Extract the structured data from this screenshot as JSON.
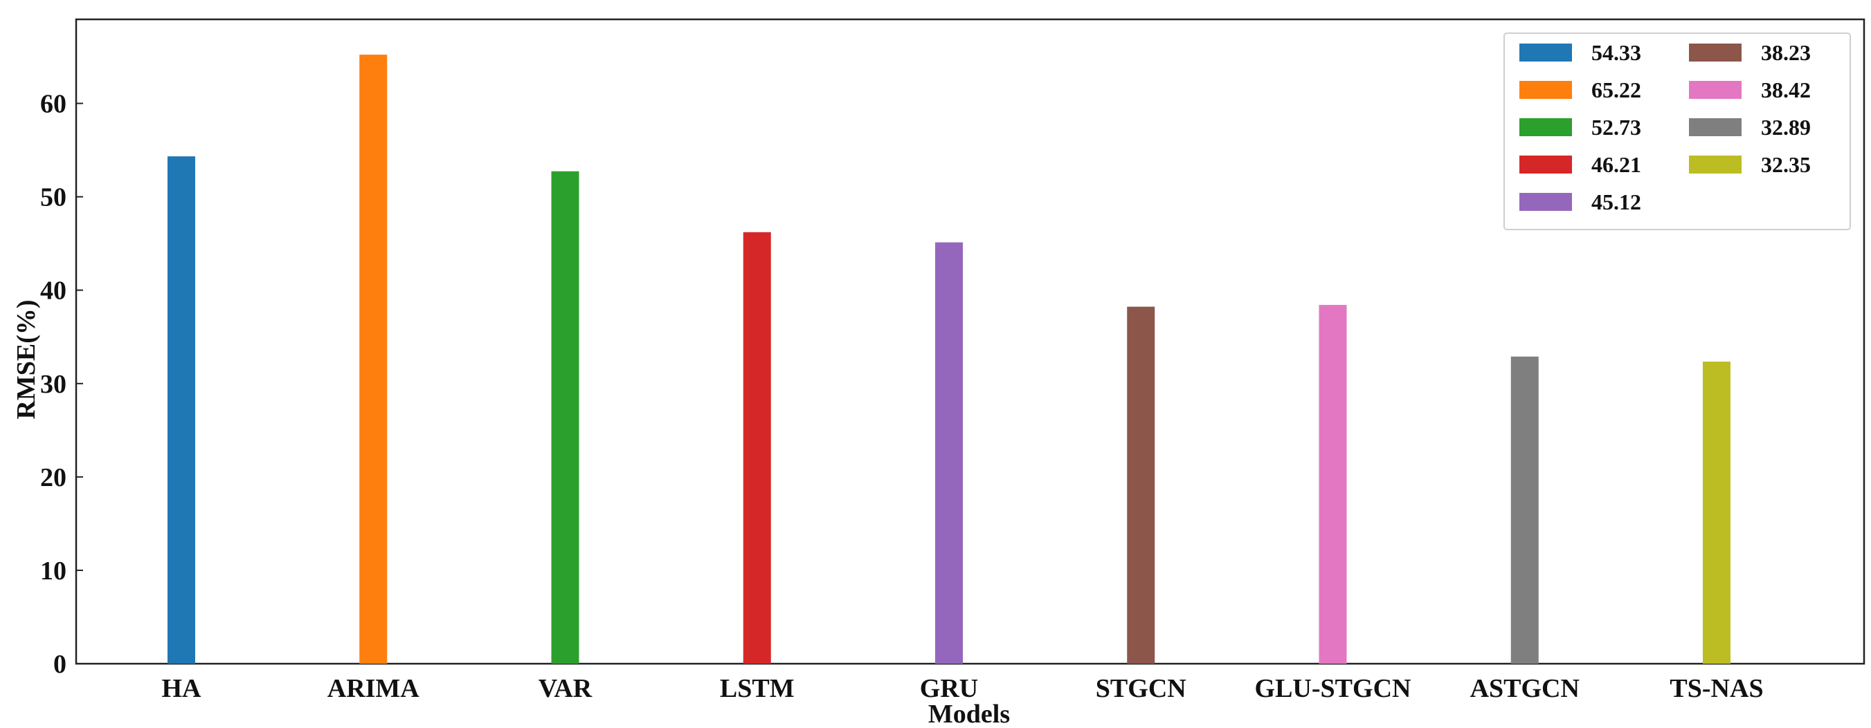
{
  "chart_data": {
    "type": "bar",
    "categories": [
      "HA",
      "ARIMA",
      "VAR",
      "LSTM",
      "GRU",
      "STGCN",
      "GLU-STGCN",
      "ASTGCN",
      "TS-NAS"
    ],
    "values": [
      54.33,
      65.22,
      52.73,
      46.21,
      45.12,
      38.23,
      38.42,
      32.89,
      32.35
    ],
    "colors": [
      "#1f77b4",
      "#ff7f0e",
      "#2ca02c",
      "#d62728",
      "#9467bd",
      "#8c564b",
      "#e377c2",
      "#7f7f7f",
      "#bcbd22"
    ],
    "legend_labels": [
      "54.33",
      "65.22",
      "52.73",
      "46.21",
      "45.12",
      "38.23",
      "38.42",
      "32.89",
      "32.35"
    ],
    "xlabel": "Models",
    "ylabel": "RMSE(%)",
    "ylim": [
      0,
      69
    ],
    "yticks": [
      "0",
      "10",
      "20",
      "30",
      "40",
      "50",
      "60"
    ],
    "grid": false,
    "legend_position": "top-right"
  }
}
